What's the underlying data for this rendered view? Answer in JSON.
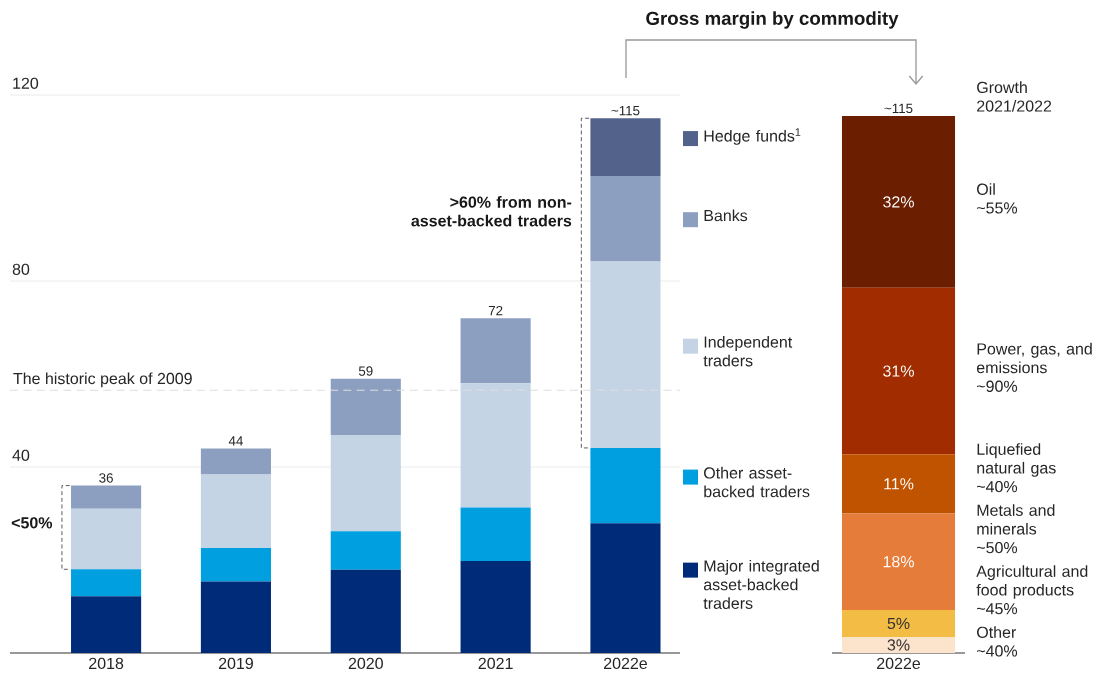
{
  "chart_data": [
    {
      "type": "bar",
      "stacked": true,
      "categories": [
        "2018",
        "2019",
        "2020",
        "2021",
        "2022e"
      ],
      "series": [
        {
          "name": "Major integrated asset-backed traders",
          "color": "#002b78",
          "values": [
            12.2,
            15.4,
            17.9,
            19.8,
            27.9
          ]
        },
        {
          "name": "Other asset-backed traders",
          "color": "#009fe0",
          "values": [
            5.8,
            7.2,
            8.3,
            11.5,
            16.2
          ]
        },
        {
          "name": "Independent traders",
          "color": "#c5d4e5",
          "values": [
            13,
            15.8,
            20.7,
            26.7,
            40.1
          ]
        },
        {
          "name": "Banks",
          "color": "#8c9fc0",
          "values": [
            5,
            5.6,
            12.1,
            14,
            18.4
          ]
        },
        {
          "name": "Hedge funds$^{1}$",
          "color": "#52628a",
          "values": [
            null,
            null,
            null,
            null,
            12.4
          ]
        }
      ],
      "totals": [
        "36",
        "44",
        "59",
        "72",
        "~115"
      ],
      "ylim": [
        0,
        120
      ],
      "yticks": [
        40,
        80,
        120
      ],
      "grid": "y",
      "legend": "right",
      "ref_lines": [
        {
          "axis": "y",
          "value": 56.5,
          "label": "The historic peak of 2009",
          "color": "#dddddd",
          "line_style": "dashed"
        }
      ],
      "annotations": [
        "<50%",
        ">60% from non-asset-backed traders"
      ]
    },
    {
      "type": "bar",
      "stacked": true,
      "title": "Gross margin by commodity",
      "legend_title": "Growth 2021/2022",
      "categories": [
        "2022e"
      ],
      "series": [
        {
          "name": "Other",
          "color": "#fce3cc",
          "values": [
            3
          ],
          "value_labels": [
            "3%"
          ]
        },
        {
          "name": "Agricultural and food products",
          "color": "#f2bc45",
          "values": [
            5
          ],
          "value_labels": [
            "5%"
          ]
        },
        {
          "name": "Metals and minerals",
          "color": "#e67c3a",
          "values": [
            18
          ],
          "value_labels": [
            "18%"
          ]
        },
        {
          "name": "Liquefied natural gas",
          "color": "#c05300",
          "values": [
            11
          ],
          "value_labels": [
            "11%"
          ]
        },
        {
          "name": "Power, gas, and emissions",
          "color": "#a12c00",
          "values": [
            31
          ],
          "value_labels": [
            "31%"
          ]
        },
        {
          "name": "Oil",
          "color": "#6b1e00",
          "values": [
            32
          ],
          "value_labels": [
            "32%"
          ]
        }
      ],
      "tick_labels": "x",
      "legend": "right",
      "annotations": [
        "~40%",
        "~45%",
        "~50%",
        "~40%",
        "~90%",
        "~55%",
        {
          "text": "~115",
          "x": "2022e",
          "y": 100
        }
      ]
    }
  ]
}
